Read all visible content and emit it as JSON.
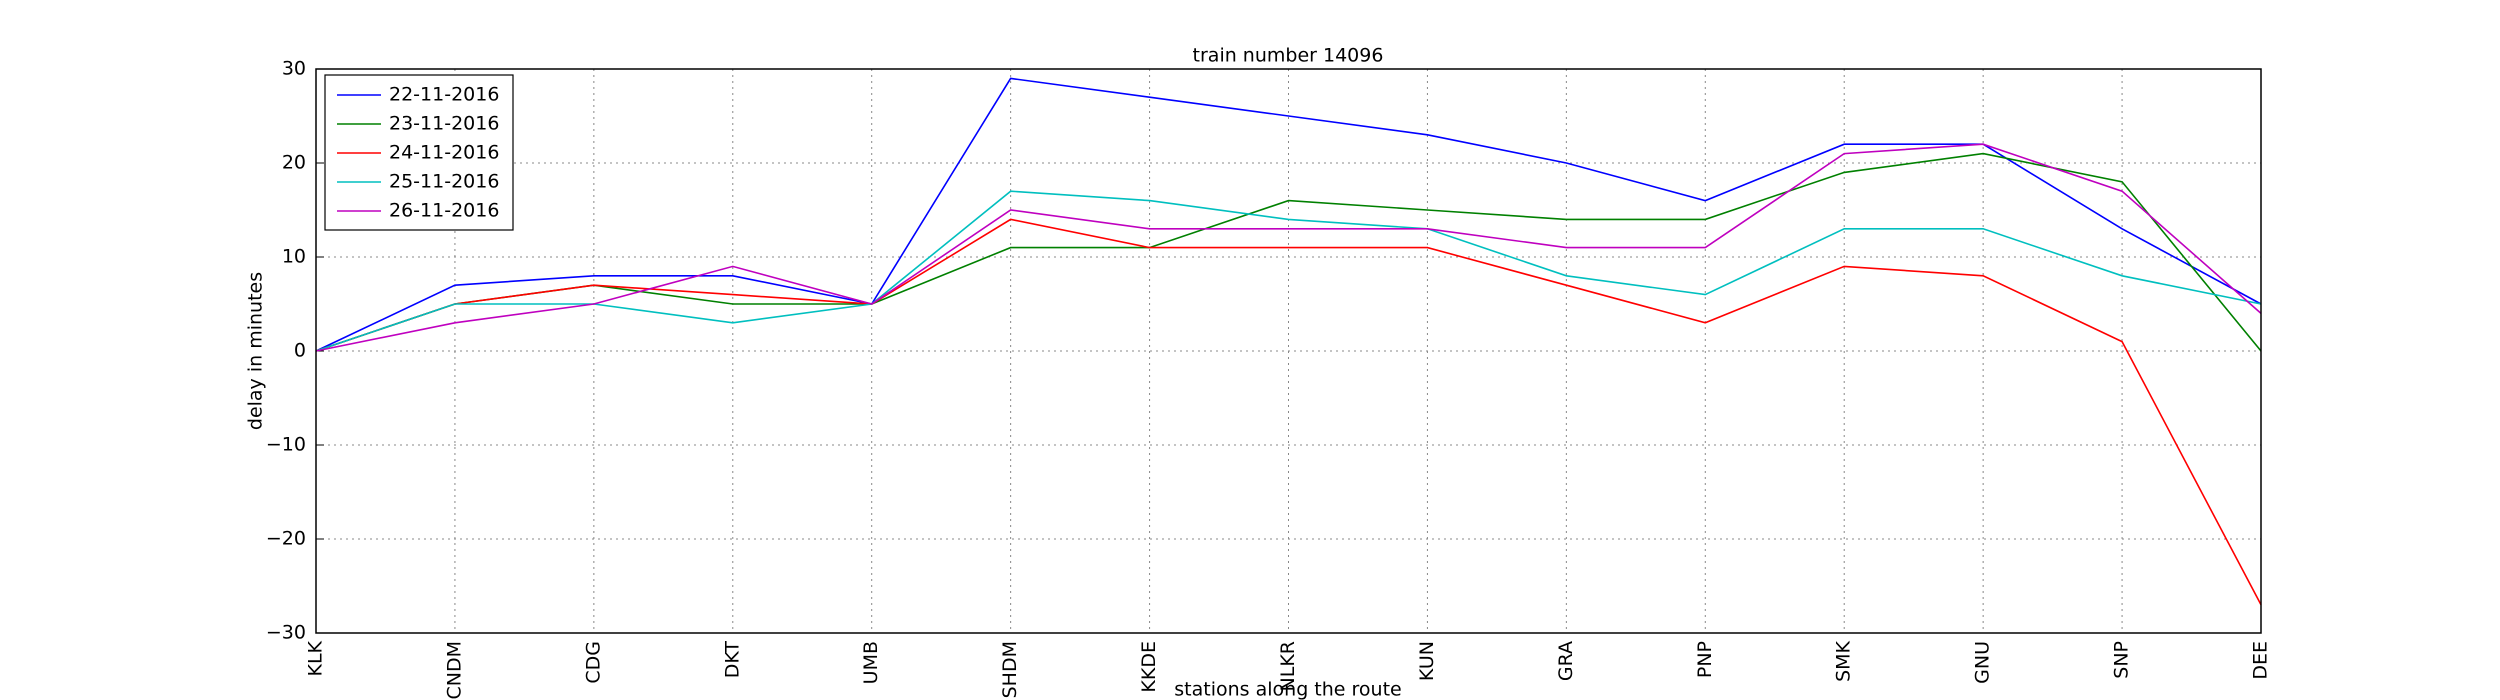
{
  "chart_data": {
    "type": "line",
    "title": "train number 14096",
    "x_label": "stations along the route",
    "y_label": "delay in minutes",
    "categories": [
      "KLK",
      "CNDM",
      "CDG",
      "DKT",
      "UMB",
      "SHDM",
      "KKDE",
      "NLKR",
      "KUN",
      "GRA",
      "PNP",
      "SMK",
      "GNU",
      "SNP",
      "DEE"
    ],
    "series": [
      {
        "name": "22-11-2016",
        "color": "#0000ff",
        "values": [
          0,
          7,
          8,
          8,
          5,
          29,
          27,
          25,
          23,
          20,
          16,
          22,
          22,
          13,
          5
        ]
      },
      {
        "name": "23-11-2016",
        "color": "#008000",
        "values": [
          0,
          5,
          7,
          5,
          5,
          11,
          11,
          16,
          15,
          14,
          14,
          19,
          21,
          18,
          0
        ]
      },
      {
        "name": "24-11-2016",
        "color": "#ff0000",
        "values": [
          0,
          5,
          7,
          6,
          5,
          14,
          11,
          11,
          11,
          7,
          3,
          9,
          8,
          1,
          -27
        ]
      },
      {
        "name": "25-11-2016",
        "color": "#00bfbf",
        "values": [
          0,
          5,
          5,
          3,
          5,
          17,
          16,
          14,
          13,
          8,
          6,
          13,
          13,
          8,
          5
        ]
      },
      {
        "name": "26-11-2016",
        "color": "#bf00bf",
        "values": [
          0,
          3,
          5,
          9,
          5,
          15,
          13,
          13,
          13,
          11,
          11,
          21,
          22,
          17,
          4
        ]
      }
    ],
    "ylim": [
      -30,
      30
    ],
    "yticks": [
      {
        "value": -30,
        "label": "−30"
      },
      {
        "value": -20,
        "label": "−20"
      },
      {
        "value": -10,
        "label": "−10"
      },
      0,
      10,
      20,
      30
    ],
    "grid": true,
    "legend": "upper left"
  }
}
